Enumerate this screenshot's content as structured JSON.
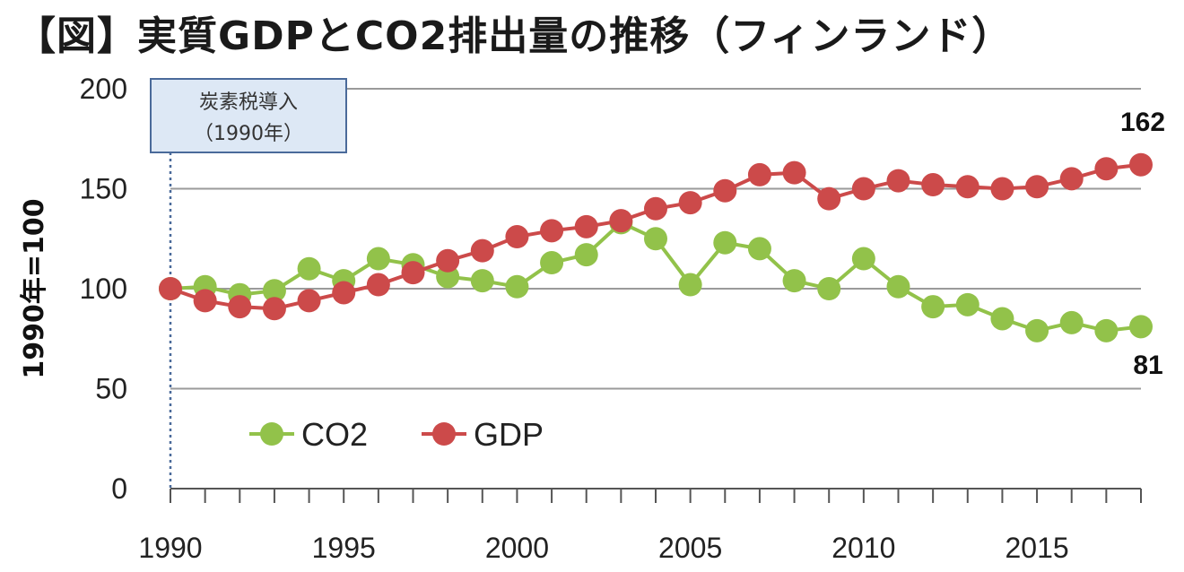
{
  "title": "【図】実質GDPとCO2排出量の推移（フィンランド）",
  "colors": {
    "co2": "#92c24a",
    "gdp": "#cc4a4a",
    "grid": "#9a9a9a",
    "annotation_fill": "#dde8f5",
    "annotation_border": "#4a6a9a"
  },
  "chart_data": {
    "type": "line",
    "ylabel": "1990年=100",
    "xlabel": "",
    "xlim": [
      1990,
      2018
    ],
    "ylim": [
      0,
      200
    ],
    "yticks": [
      "0",
      "50",
      "100",
      "150",
      "200"
    ],
    "xticks": [
      "1990",
      "1995",
      "2000",
      "2005",
      "2010",
      "2015"
    ],
    "x": [
      1990,
      1991,
      1992,
      1993,
      1994,
      1995,
      1996,
      1997,
      1998,
      1999,
      2000,
      2001,
      2002,
      2003,
      2004,
      2005,
      2006,
      2007,
      2008,
      2009,
      2010,
      2011,
      2012,
      2013,
      2014,
      2015,
      2016,
      2017,
      2018
    ],
    "series": [
      {
        "name": "CO2",
        "values": [
          100,
          101,
          97,
          99,
          110,
          104,
          115,
          112,
          106,
          104,
          101,
          113,
          117,
          133,
          125,
          102,
          123,
          120,
          104,
          100,
          115,
          101,
          91,
          92,
          85,
          79,
          83,
          79,
          81
        ]
      },
      {
        "name": "GDP",
        "values": [
          100,
          94,
          91,
          90,
          94,
          98,
          102,
          108,
          114,
          119,
          126,
          129,
          131,
          134,
          140,
          143,
          149,
          157,
          158,
          145,
          150,
          154,
          152,
          151,
          150,
          151,
          155,
          160,
          162
        ]
      }
    ],
    "legend_position": "lower-left",
    "grid": true,
    "end_labels": {
      "gdp": "162",
      "co2": "81"
    },
    "annotations": [
      {
        "line1": "炭素税導入",
        "line2": "（1990年）"
      }
    ]
  }
}
